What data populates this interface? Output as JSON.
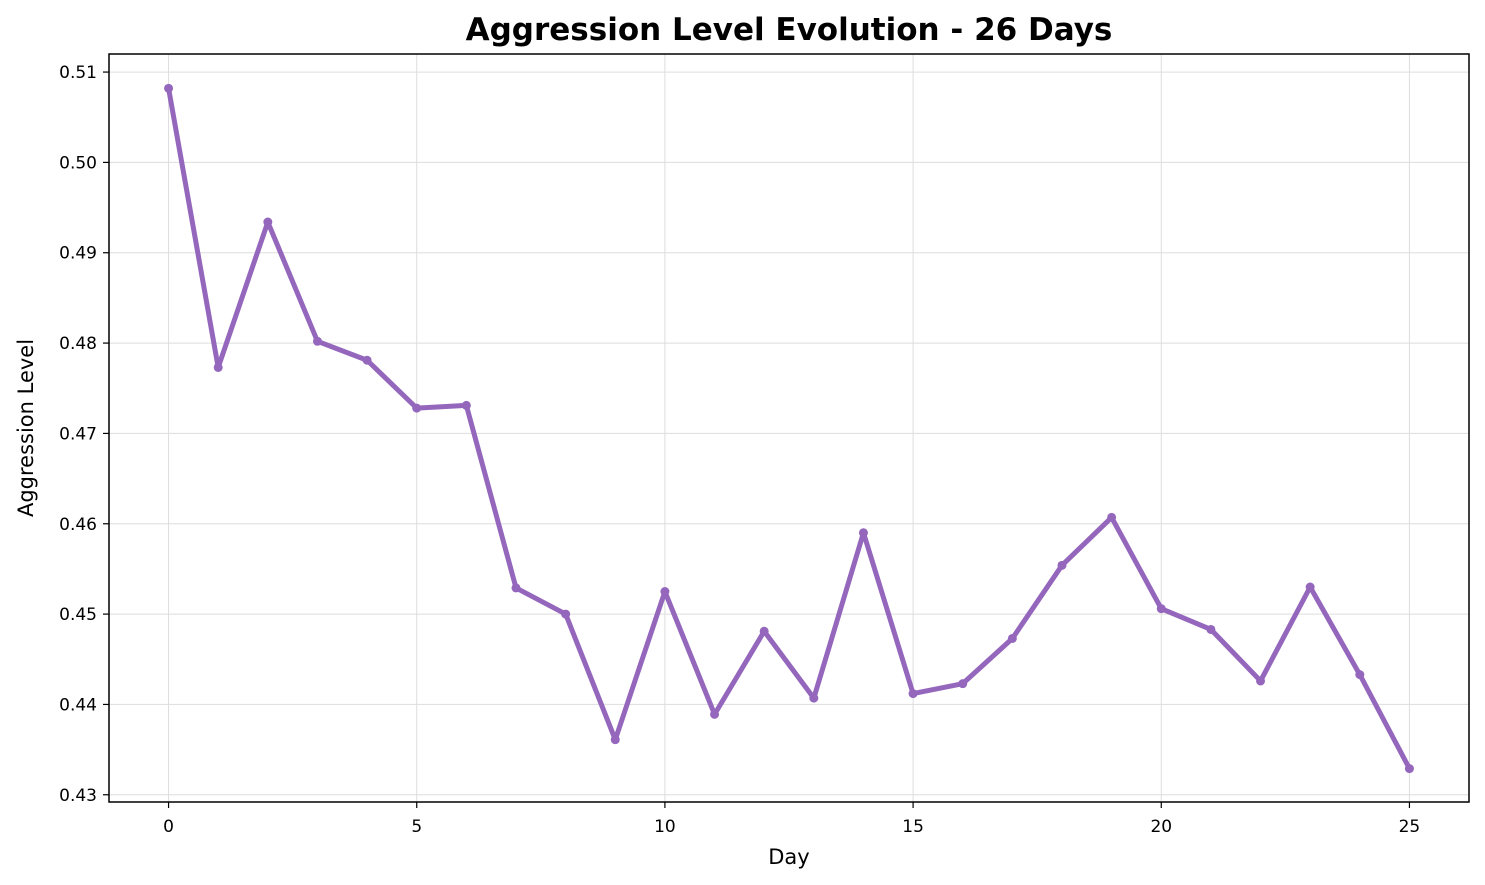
{
  "chart_data": {
    "type": "line",
    "title": "Aggression Level Evolution - 26 Days",
    "xlabel": "Day",
    "ylabel": "Aggression Level",
    "x": [
      0,
      1,
      2,
      3,
      4,
      5,
      6,
      7,
      8,
      9,
      10,
      11,
      12,
      13,
      14,
      15,
      16,
      17,
      18,
      19,
      20,
      21,
      22,
      23,
      24,
      25
    ],
    "series": [
      {
        "values": [
          0.5082,
          0.4773,
          0.4934,
          0.4802,
          0.4781,
          0.4728,
          0.4731,
          0.4529,
          0.45,
          0.4361,
          0.4525,
          0.4389,
          0.4481,
          0.4407,
          0.459,
          0.4412,
          0.4423,
          0.4473,
          0.4554,
          0.4607,
          0.4506,
          0.4483,
          0.4426,
          0.453,
          0.4433,
          0.4329
        ],
        "color": "#9467bd"
      }
    ],
    "xlim": [
      -1.2,
      26.2
    ],
    "ylim": [
      0.4292,
      0.512
    ],
    "xticks": [
      0,
      5,
      10,
      15,
      20,
      25
    ],
    "xtick_labels": [
      "0",
      "5",
      "10",
      "15",
      "20",
      "25"
    ],
    "yticks": [
      0.43,
      0.44,
      0.45,
      0.46,
      0.47,
      0.48,
      0.49,
      0.5,
      0.51
    ],
    "ytick_labels": [
      "0.43",
      "0.44",
      "0.45",
      "0.46",
      "0.47",
      "0.48",
      "0.49",
      "0.50",
      "0.51"
    ],
    "grid": true
  }
}
